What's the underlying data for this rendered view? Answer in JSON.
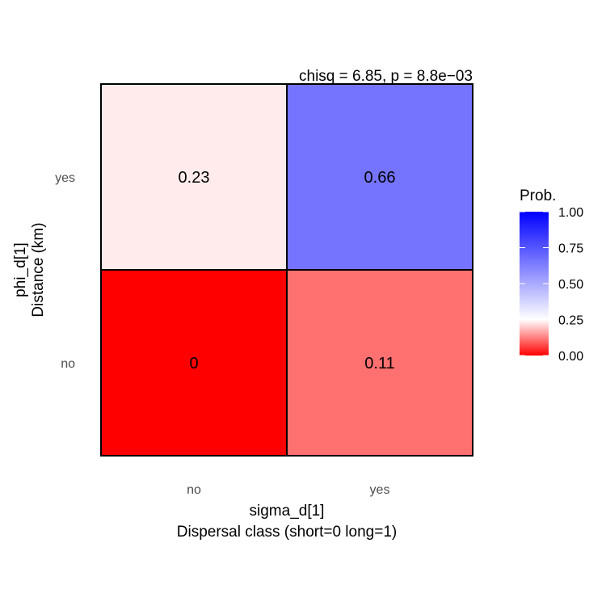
{
  "chart_data": {
    "type": "heatmap",
    "subtitle": "chisq = 6.85, p = 8.8e−03",
    "x_categories": [
      "no",
      "yes"
    ],
    "y_categories": [
      "no",
      "yes"
    ],
    "xlabel": [
      "sigma_d[1]",
      "Dispersal class (short=0 long=1)"
    ],
    "ylabel": [
      "phi_d[1]",
      "Distance (km)"
    ],
    "cells": [
      {
        "x": "no",
        "y": "yes",
        "value": 0.23,
        "label": "0.23"
      },
      {
        "x": "yes",
        "y": "yes",
        "value": 0.66,
        "label": "0.66"
      },
      {
        "x": "no",
        "y": "no",
        "value": 0,
        "label": "0"
      },
      {
        "x": "yes",
        "y": "no",
        "value": 0.11,
        "label": "0.11"
      }
    ],
    "legend": {
      "title": "Prob.",
      "ticks": [
        "0.00",
        "0.25",
        "0.50",
        "0.75",
        "1.00"
      ],
      "tick_values": [
        0,
        0.25,
        0.5,
        0.75,
        1
      ],
      "range": [
        0,
        1
      ],
      "gradient": [
        {
          "value": 0,
          "color": "#ff0000"
        },
        {
          "value": 0.25,
          "color": "#ffffff"
        },
        {
          "value": 1,
          "color": "#0000ff"
        }
      ],
      "placement": "right"
    }
  }
}
